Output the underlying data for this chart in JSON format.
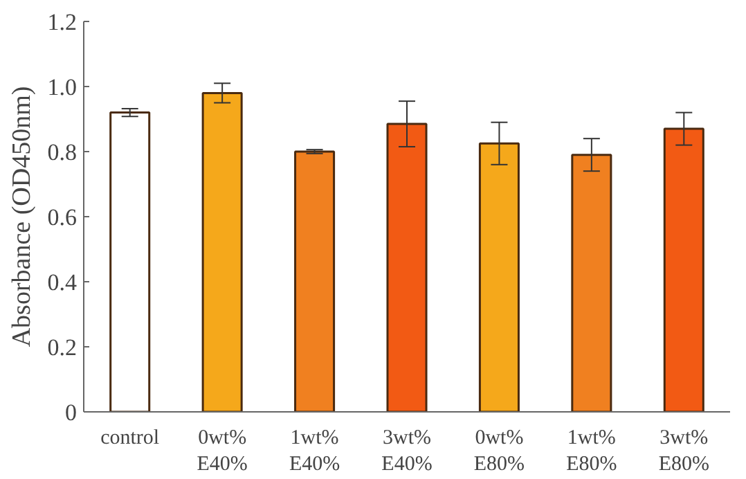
{
  "chart_data": {
    "type": "bar",
    "ylabel": "Absorbance (OD450nm)",
    "categories": [
      "control",
      "0wt%\nE40%",
      "1wt%\nE40%",
      "3wt%\nE40%",
      "0wt%\nE80%",
      "1wt%\nE80%",
      "3wt%\nE80%"
    ],
    "values": [
      0.92,
      0.98,
      0.8,
      0.885,
      0.825,
      0.79,
      0.87
    ],
    "errors": [
      0.012,
      0.03,
      0.006,
      0.07,
      0.065,
      0.05,
      0.05
    ],
    "colors": [
      "#ffffff",
      "#f5a81b",
      "#f08020",
      "#f25a14",
      "#f5a81b",
      "#f08020",
      "#f25a14"
    ],
    "ylim": [
      0,
      1.2
    ],
    "yticks": [
      0,
      0.2,
      0.4,
      0.6,
      0.8,
      {
        "value": 1.0,
        "label": "1.0"
      },
      1.2
    ],
    "grid": false
  }
}
